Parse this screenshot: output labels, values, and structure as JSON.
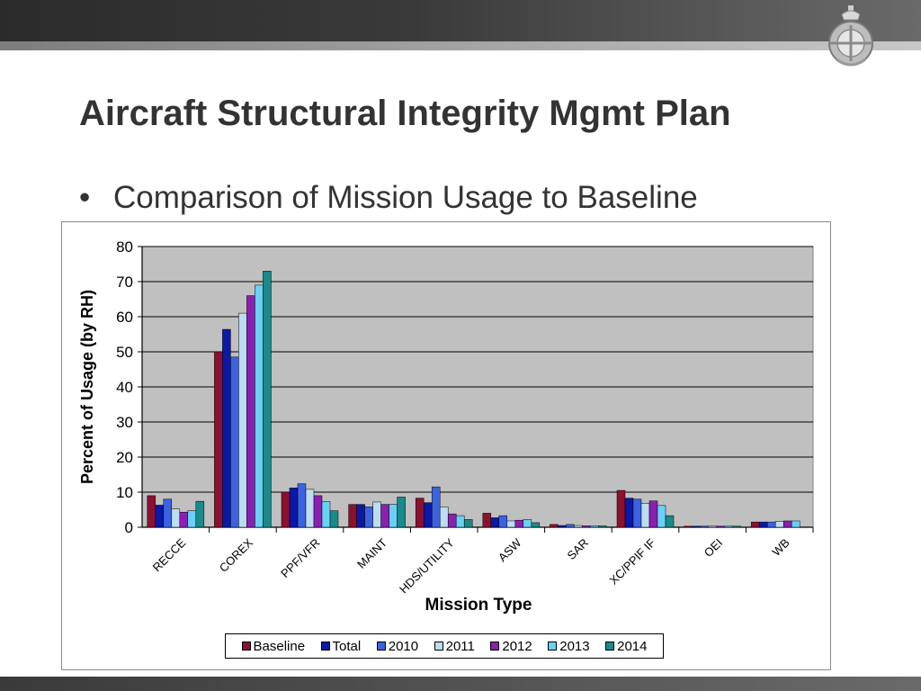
{
  "slide": {
    "title": "Aircraft Structural Integrity Mgmt Plan",
    "bullet": "Comparison of Mission Usage to Baseline"
  },
  "colors": {
    "Baseline": "#8c1030",
    "Total": "#0b18a8",
    "2010": "#3b62e0",
    "2011": "#bcdcf4",
    "2012": "#8a1fb2",
    "2013": "#6ad0f4",
    "2014": "#1a8a8a",
    "plot_bg": "#c0c0c0"
  },
  "chart_data": {
    "type": "bar",
    "xlabel": "Mission Type",
    "ylabel": "Percent of Usage (by RH)",
    "ylim": [
      0,
      80
    ],
    "yticks": [
      0,
      10,
      20,
      30,
      40,
      50,
      60,
      70,
      80
    ],
    "grid": true,
    "legend_position": "bottom",
    "categories": [
      "RECCE",
      "COREX",
      "PPF/VFR",
      "MAINT",
      "HDS/UTILITY",
      "ASW",
      "SAR",
      "XC/PPIF IF",
      "OEI",
      "WB"
    ],
    "series": [
      {
        "name": "Baseline",
        "values": [
          9,
          50,
          10,
          6.5,
          8.3,
          4,
          0.8,
          10.5,
          0.3,
          1.5
        ]
      },
      {
        "name": "Total",
        "values": [
          6.3,
          56.4,
          11.2,
          6.5,
          7,
          2.7,
          0.5,
          8.3,
          0.3,
          1.5
        ]
      },
      {
        "name": "2010",
        "values": [
          8,
          48.5,
          12.4,
          5.8,
          11.5,
          3.3,
          0.8,
          8,
          0.3,
          1.5
        ]
      },
      {
        "name": "2011",
        "values": [
          5.2,
          61,
          10.8,
          7.2,
          5.8,
          1.8,
          0.5,
          6.8,
          0.3,
          1.7
        ]
      },
      {
        "name": "2012",
        "values": [
          4.3,
          66,
          9,
          6.5,
          3.8,
          2,
          0.4,
          7.5,
          0.3,
          1.8
        ]
      },
      {
        "name": "2013",
        "values": [
          4.7,
          69,
          7.3,
          6.5,
          3.3,
          2.2,
          0.4,
          6.2,
          0.3,
          1.8
        ]
      },
      {
        "name": "2014",
        "values": [
          7.4,
          73,
          4.7,
          8.6,
          2.2,
          1.3,
          0.4,
          3.3,
          0.3,
          0
        ]
      }
    ]
  }
}
